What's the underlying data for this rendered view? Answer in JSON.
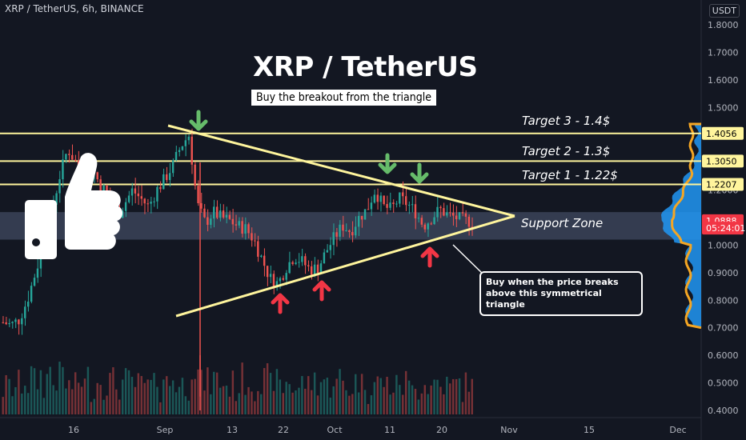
{
  "header": {
    "symbol": "XRP / TetherUS, 6h, BINANCE",
    "currency": "USDT"
  },
  "annotations": {
    "title": "XRP / TetherUS",
    "subtitle": "Buy the breakout from the triangle",
    "target3": "Target 3 - 1.4$",
    "target2": "Target 2 - 1.3$",
    "target1": "Target 1 - 1.22$",
    "support": "Support Zone",
    "note_line1": "Buy when the price breaks",
    "note_line2": "above this symmetrical triangle"
  },
  "chart_data": {
    "type": "candlestick",
    "price_axis": {
      "ticks": [
        "1.8000",
        "1.7000",
        "1.6000",
        "1.5000",
        "1.4000",
        "1.3000",
        "1.2000",
        "1.1000",
        "1.0000",
        "0.9000",
        "0.8000",
        "0.7000",
        "0.6000",
        "0.5000",
        "0.4000"
      ],
      "range": [
        0.39,
        1.84
      ]
    },
    "time_axis": {
      "ticks": [
        "16",
        "Sep",
        "13",
        "22",
        "Oct",
        "11",
        "20",
        "Nov",
        "15",
        "Dec"
      ]
    },
    "price_tags": [
      {
        "label": "1.4056",
        "value": 1.4056,
        "color": "#fff59d",
        "text_color": "#000000"
      },
      {
        "label": "1.3050",
        "value": 1.305,
        "color": "#fff59d",
        "text_color": "#000000"
      },
      {
        "label": "1.2207",
        "value": 1.2207,
        "color": "#fff59d",
        "text_color": "#000000"
      },
      {
        "label": "1.0888",
        "value": 1.0888,
        "color": "#f23645",
        "text_color": "#ffffff"
      },
      {
        "label": "05:24:01",
        "value": 1.062,
        "color": "#f23645",
        "text_color": "#ffffff"
      }
    ],
    "horizontal_levels": [
      1.4056,
      1.305,
      1.2207
    ],
    "support_zone": [
      1.02,
      1.12
    ],
    "triangle": {
      "upper_start": {
        "date": "~Sep 1",
        "price": 1.48
      },
      "lower_start": {
        "date": "~Aug 31",
        "price": 0.7
      },
      "apex": {
        "date": "~Oct 31",
        "price": 1.09
      }
    },
    "price_path": [
      0.72,
      0.71,
      0.73,
      0.8,
      0.9,
      1.0,
      1.12,
      1.25,
      1.35,
      1.3,
      1.24,
      1.28,
      1.22,
      1.18,
      1.1,
      1.15,
      1.2,
      1.17,
      1.14,
      1.2,
      1.24,
      1.29,
      1.36,
      1.4,
      1.15,
      1.08,
      1.12,
      1.1,
      1.09,
      1.07,
      1.06,
      1.02,
      0.95,
      0.88,
      0.86,
      0.92,
      0.96,
      0.94,
      0.91,
      0.92,
      0.98,
      1.03,
      1.07,
      1.05,
      1.1,
      1.13,
      1.2,
      1.14,
      1.13,
      1.17,
      1.15,
      1.12,
      1.07,
      1.1,
      1.13,
      1.11,
      1.1,
      1.09,
      1.085
    ],
    "colors": {
      "up": "#26a69a",
      "down": "#ef5350",
      "levels": "#fff59d",
      "triangle": "#fff59d",
      "green_arrow": "#66bb6a",
      "red_arrow": "#f23645"
    }
  }
}
